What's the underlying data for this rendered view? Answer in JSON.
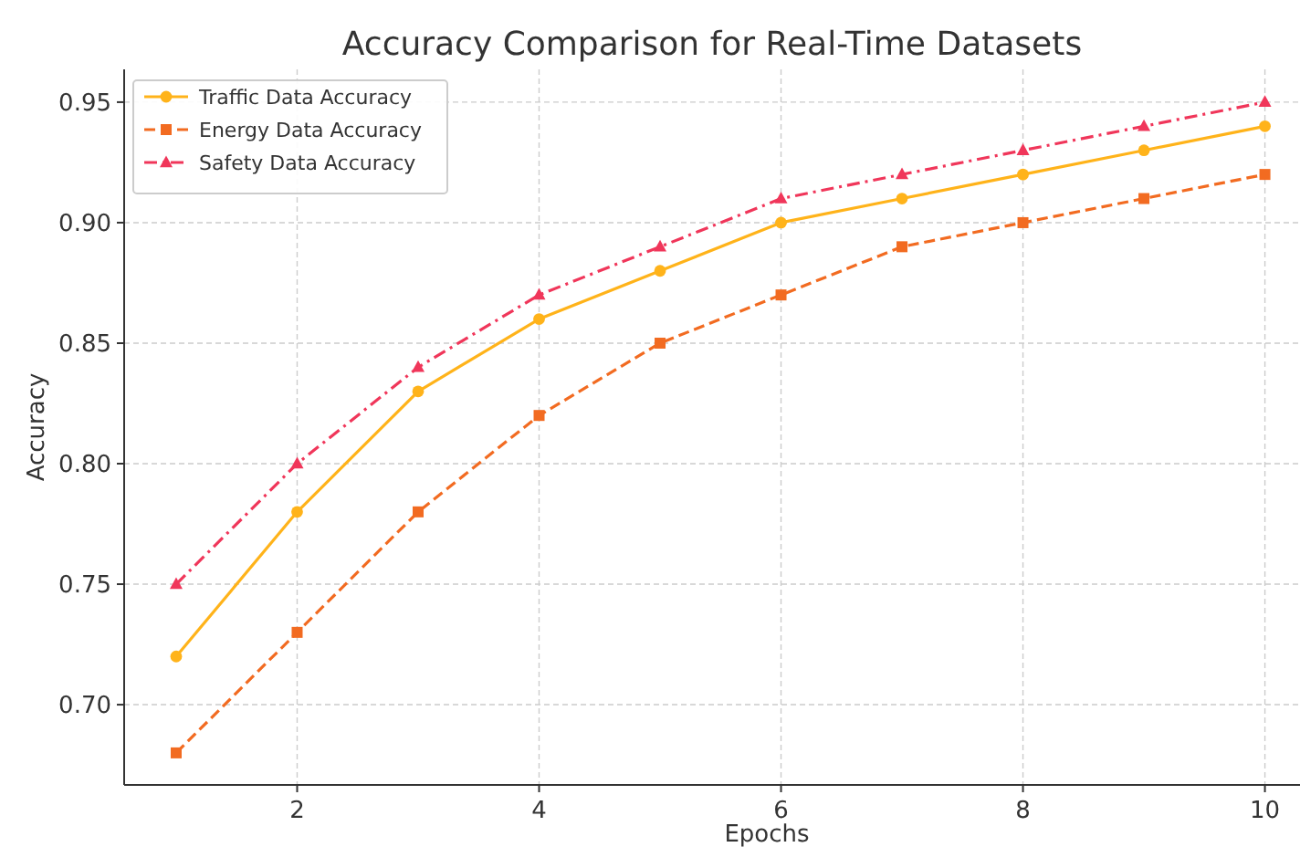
{
  "chart_data": {
    "type": "line",
    "title": "Accuracy Comparison for Real-Time Datasets",
    "xlabel": "Epochs",
    "ylabel": "Accuracy",
    "x": [
      1,
      2,
      3,
      4,
      5,
      6,
      7,
      8,
      9,
      10
    ],
    "series": [
      {
        "name": "Traffic Data Accuracy",
        "color": "#ffb31a",
        "marker": "circle",
        "line_style": "solid",
        "values": [
          0.72,
          0.78,
          0.83,
          0.86,
          0.88,
          0.9,
          0.91,
          0.92,
          0.93,
          0.94
        ]
      },
      {
        "name": "Energy Data Accuracy",
        "color": "#f26b21",
        "marker": "square",
        "line_style": "dashed",
        "values": [
          0.68,
          0.73,
          0.78,
          0.82,
          0.85,
          0.87,
          0.89,
          0.9,
          0.91,
          0.92
        ]
      },
      {
        "name": "Safety Data Accuracy",
        "color": "#f0365a",
        "marker": "triangle",
        "line_style": "dashdot",
        "values": [
          0.75,
          0.8,
          0.84,
          0.87,
          0.89,
          0.91,
          0.92,
          0.93,
          0.94,
          0.95
        ]
      }
    ],
    "xlim": [
      0.57,
      10.29
    ],
    "xticks": [
      2,
      4,
      6,
      8,
      10
    ],
    "ylim": [
      0.6667,
      0.9636
    ],
    "yticks": [
      {
        "value": 0.7,
        "label": "0.70"
      },
      {
        "value": 0.75,
        "label": "0.75"
      },
      {
        "value": 0.8,
        "label": "0.80"
      },
      {
        "value": 0.85,
        "label": "0.85"
      },
      {
        "value": 0.9,
        "label": "0.90"
      },
      {
        "value": 0.95,
        "label": "0.95"
      }
    ],
    "grid": true,
    "legend": "top left"
  }
}
